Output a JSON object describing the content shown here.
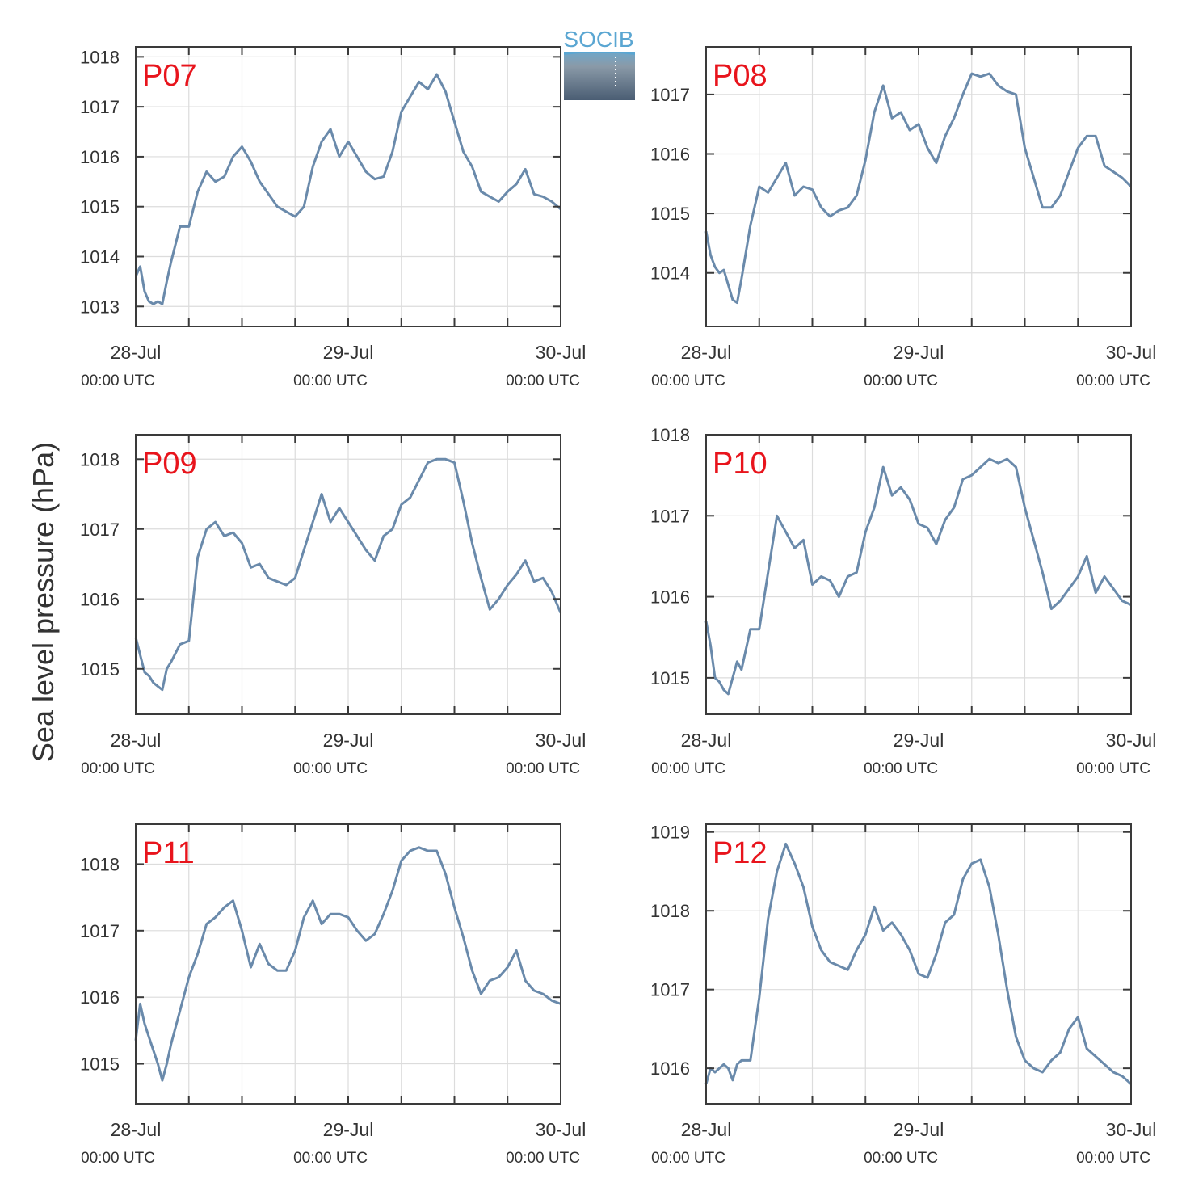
{
  "figure": {
    "ylabel": "Sea level pressure (hPa)",
    "logo_text": "SOCIB"
  },
  "colors": {
    "line": "#6a8aab",
    "panel_label": "#e8141c",
    "axis": "#3a3a3a",
    "grid": "#dcdcdc",
    "text": "#333333",
    "logo_top": "#5aa6d2",
    "logo_bottom": "#4a5d73"
  },
  "chart_data": [
    {
      "type": "line",
      "label": "P07",
      "xlim": [
        0,
        48
      ],
      "ylim": [
        1012.6,
        1018.2
      ],
      "yticks": [
        1013,
        1014,
        1015,
        1016,
        1017,
        1018
      ],
      "xticks": [
        {
          "x": 0,
          "label": "28-Jul",
          "sub": "00:00 UTC"
        },
        {
          "x": 24,
          "label": "29-Jul",
          "sub": "00:00 UTC"
        },
        {
          "x": 48,
          "label": "30-Jul",
          "sub": "00:00 UTC"
        }
      ],
      "minor_xticks": [
        6,
        12,
        18,
        30,
        36,
        42
      ],
      "x": [
        0,
        0.5,
        1,
        1.5,
        2,
        2.5,
        3,
        3.5,
        4,
        5,
        6,
        7,
        8,
        9,
        10,
        11,
        12,
        13,
        14,
        15,
        16,
        17,
        18,
        19,
        20,
        21,
        22,
        23,
        24,
        25,
        26,
        27,
        28,
        29,
        30,
        31,
        32,
        33,
        34,
        35,
        36,
        37,
        38,
        39,
        40,
        41,
        42,
        43,
        44,
        45,
        46,
        47,
        48
      ],
      "y": [
        1013.6,
        1013.8,
        1013.3,
        1013.1,
        1013.05,
        1013.1,
        1013.05,
        1013.5,
        1013.9,
        1014.6,
        1014.6,
        1015.3,
        1015.7,
        1015.5,
        1015.6,
        1016.0,
        1016.2,
        1015.9,
        1015.5,
        1015.25,
        1015.0,
        1014.9,
        1014.8,
        1015.0,
        1015.8,
        1016.3,
        1016.55,
        1016.0,
        1016.3,
        1016.0,
        1015.7,
        1015.55,
        1015.6,
        1016.1,
        1016.9,
        1017.2,
        1017.5,
        1017.35,
        1017.65,
        1017.3,
        1016.7,
        1016.1,
        1015.8,
        1015.3,
        1015.2,
        1015.1,
        1015.3,
        1015.45,
        1015.75,
        1015.25,
        1015.2,
        1015.1,
        1014.95
      ]
    },
    {
      "type": "line",
      "label": "P08",
      "xlim": [
        0,
        48
      ],
      "ylim": [
        1013.1,
        1017.8
      ],
      "yticks": [
        1014,
        1015,
        1016,
        1017
      ],
      "xticks": [
        {
          "x": 0,
          "label": "28-Jul",
          "sub": "00:00 UTC"
        },
        {
          "x": 24,
          "label": "29-Jul",
          "sub": "00:00 UTC"
        },
        {
          "x": 48,
          "label": "30-Jul",
          "sub": "00:00 UTC"
        }
      ],
      "minor_xticks": [
        6,
        12,
        18,
        30,
        36,
        42
      ],
      "x": [
        0,
        0.5,
        1,
        1.5,
        2,
        2.5,
        3,
        3.5,
        4,
        5,
        6,
        7,
        8,
        9,
        10,
        11,
        12,
        13,
        14,
        15,
        16,
        17,
        18,
        19,
        20,
        21,
        22,
        23,
        24,
        25,
        26,
        27,
        28,
        29,
        30,
        31,
        32,
        33,
        34,
        35,
        36,
        37,
        38,
        39,
        40,
        41,
        42,
        43,
        44,
        45,
        46,
        47,
        48
      ],
      "y": [
        1014.7,
        1014.3,
        1014.1,
        1014.0,
        1014.05,
        1013.8,
        1013.55,
        1013.5,
        1013.9,
        1014.8,
        1015.45,
        1015.35,
        1015.6,
        1015.85,
        1015.3,
        1015.45,
        1015.4,
        1015.1,
        1014.95,
        1015.05,
        1015.1,
        1015.3,
        1015.9,
        1016.7,
        1017.15,
        1016.6,
        1016.7,
        1016.4,
        1016.5,
        1016.1,
        1015.85,
        1016.3,
        1016.6,
        1017.0,
        1017.35,
        1017.3,
        1017.35,
        1017.15,
        1017.05,
        1017.0,
        1016.1,
        1015.6,
        1015.1,
        1015.1,
        1015.3,
        1015.7,
        1016.1,
        1016.3,
        1016.3,
        1015.8,
        1015.7,
        1015.6,
        1015.45
      ]
    },
    {
      "type": "line",
      "label": "P09",
      "xlim": [
        0,
        48
      ],
      "ylim": [
        1014.35,
        1018.35
      ],
      "yticks": [
        1015,
        1016,
        1017,
        1018
      ],
      "xticks": [
        {
          "x": 0,
          "label": "28-Jul",
          "sub": "00:00 UTC"
        },
        {
          "x": 24,
          "label": "29-Jul",
          "sub": "00:00 UTC"
        },
        {
          "x": 48,
          "label": "30-Jul",
          "sub": "00:00 UTC"
        }
      ],
      "minor_xticks": [
        6,
        12,
        18,
        30,
        36,
        42
      ],
      "x": [
        0,
        0.5,
        1,
        1.5,
        2,
        2.5,
        3,
        3.5,
        4,
        5,
        6,
        7,
        8,
        9,
        10,
        11,
        12,
        13,
        14,
        15,
        16,
        17,
        18,
        19,
        20,
        21,
        22,
        23,
        24,
        25,
        26,
        27,
        28,
        29,
        30,
        31,
        32,
        33,
        34,
        35,
        36,
        37,
        38,
        39,
        40,
        41,
        42,
        43,
        44,
        45,
        46,
        47,
        48
      ],
      "y": [
        1015.45,
        1015.2,
        1014.95,
        1014.9,
        1014.8,
        1014.75,
        1014.7,
        1015.0,
        1015.1,
        1015.35,
        1015.4,
        1016.6,
        1017.0,
        1017.1,
        1016.9,
        1016.95,
        1016.8,
        1016.45,
        1016.5,
        1016.3,
        1016.25,
        1016.2,
        1016.3,
        1016.7,
        1017.1,
        1017.5,
        1017.1,
        1017.3,
        1017.1,
        1016.9,
        1016.7,
        1016.55,
        1016.9,
        1017.0,
        1017.35,
        1017.45,
        1017.7,
        1017.95,
        1018.0,
        1018.0,
        1017.95,
        1017.4,
        1016.8,
        1016.3,
        1015.85,
        1016.0,
        1016.2,
        1016.35,
        1016.55,
        1016.25,
        1016.3,
        1016.1,
        1015.8
      ]
    },
    {
      "type": "line",
      "label": "P10",
      "xlim": [
        0,
        48
      ],
      "ylim": [
        1014.55,
        1018.0
      ],
      "yticks": [
        1015,
        1016,
        1017,
        1018
      ],
      "xticks": [
        {
          "x": 0,
          "label": "28-Jul",
          "sub": "00:00 UTC"
        },
        {
          "x": 24,
          "label": "29-Jul",
          "sub": "00:00 UTC"
        },
        {
          "x": 48,
          "label": "30-Jul",
          "sub": "00:00 UTC"
        }
      ],
      "minor_xticks": [
        6,
        12,
        18,
        30,
        36,
        42
      ],
      "x": [
        0,
        0.5,
        1,
        1.5,
        2,
        2.5,
        3,
        3.5,
        4,
        5,
        5.5,
        6,
        7,
        8,
        9,
        10,
        11,
        12,
        13,
        14,
        15,
        16,
        17,
        18,
        19,
        20,
        21,
        22,
        23,
        24,
        25,
        26,
        27,
        28,
        29,
        30,
        31,
        32,
        33,
        34,
        35,
        36,
        37,
        38,
        39,
        40,
        41,
        42,
        43,
        44,
        45,
        46,
        47,
        48
      ],
      "y": [
        1015.7,
        1015.4,
        1015.0,
        1014.95,
        1014.85,
        1014.8,
        1015.0,
        1015.2,
        1015.1,
        1015.6,
        1015.6,
        1015.6,
        1016.3,
        1017.0,
        1016.8,
        1016.6,
        1016.7,
        1016.15,
        1016.25,
        1016.2,
        1016.0,
        1016.25,
        1016.3,
        1016.8,
        1017.1,
        1017.6,
        1017.25,
        1017.35,
        1017.2,
        1016.9,
        1016.85,
        1016.65,
        1016.95,
        1017.1,
        1017.45,
        1017.5,
        1017.6,
        1017.7,
        1017.65,
        1017.7,
        1017.6,
        1017.1,
        1016.7,
        1016.3,
        1015.85,
        1015.95,
        1016.1,
        1016.25,
        1016.5,
        1016.05,
        1016.25,
        1016.1,
        1015.95,
        1015.9
      ]
    },
    {
      "type": "line",
      "label": "P11",
      "xlim": [
        0,
        48
      ],
      "ylim": [
        1014.4,
        1018.6
      ],
      "yticks": [
        1015,
        1016,
        1017,
        1018
      ],
      "xticks": [
        {
          "x": 0,
          "label": "28-Jul",
          "sub": "00:00 UTC"
        },
        {
          "x": 24,
          "label": "29-Jul",
          "sub": "00:00 UTC"
        },
        {
          "x": 48,
          "label": "30-Jul",
          "sub": "00:00 UTC"
        }
      ],
      "minor_xticks": [
        6,
        12,
        18,
        30,
        36,
        42
      ],
      "x": [
        0,
        0.5,
        1,
        1.5,
        2,
        2.5,
        3,
        3.5,
        4,
        5,
        6,
        7,
        8,
        9,
        10,
        11,
        12,
        13,
        14,
        15,
        16,
        17,
        18,
        19,
        20,
        21,
        22,
        23,
        24,
        25,
        26,
        27,
        28,
        29,
        30,
        31,
        32,
        33,
        34,
        35,
        36,
        37,
        38,
        39,
        40,
        41,
        42,
        43,
        44,
        45,
        46,
        47,
        48
      ],
      "y": [
        1015.35,
        1015.9,
        1015.6,
        1015.4,
        1015.2,
        1015.0,
        1014.75,
        1015.0,
        1015.3,
        1015.8,
        1016.3,
        1016.65,
        1017.1,
        1017.2,
        1017.35,
        1017.45,
        1017.0,
        1016.45,
        1016.8,
        1016.5,
        1016.4,
        1016.4,
        1016.7,
        1017.2,
        1017.45,
        1017.1,
        1017.25,
        1017.25,
        1017.2,
        1017.0,
        1016.85,
        1016.95,
        1017.25,
        1017.6,
        1018.05,
        1018.2,
        1018.25,
        1018.2,
        1018.2,
        1017.85,
        1017.35,
        1016.9,
        1016.4,
        1016.05,
        1016.25,
        1016.3,
        1016.45,
        1016.7,
        1016.25,
        1016.1,
        1016.05,
        1015.95,
        1015.9
      ]
    },
    {
      "type": "line",
      "label": "P12",
      "xlim": [
        0,
        48
      ],
      "ylim": [
        1015.55,
        1019.1
      ],
      "yticks": [
        1016,
        1017,
        1018,
        1019
      ],
      "xticks": [
        {
          "x": 0,
          "label": "28-Jul",
          "sub": "00:00 UTC"
        },
        {
          "x": 24,
          "label": "29-Jul",
          "sub": "00:00 UTC"
        },
        {
          "x": 48,
          "label": "30-Jul",
          "sub": "00:00 UTC"
        }
      ],
      "minor_xticks": [
        6,
        12,
        18,
        30,
        36,
        42
      ],
      "x": [
        0,
        0.5,
        1,
        1.5,
        2,
        2.5,
        3,
        3.5,
        4,
        5,
        6,
        7,
        8,
        9,
        10,
        11,
        12,
        13,
        14,
        15,
        16,
        17,
        18,
        19,
        20,
        21,
        22,
        23,
        24,
        25,
        26,
        27,
        28,
        29,
        30,
        31,
        32,
        33,
        34,
        35,
        36,
        37,
        38,
        39,
        40,
        41,
        42,
        43,
        44,
        45,
        46,
        47,
        48
      ],
      "y": [
        1015.8,
        1016.0,
        1015.95,
        1016.0,
        1016.05,
        1016.0,
        1015.85,
        1016.05,
        1016.1,
        1016.1,
        1016.9,
        1017.9,
        1018.5,
        1018.85,
        1018.6,
        1018.3,
        1017.8,
        1017.5,
        1017.35,
        1017.3,
        1017.25,
        1017.5,
        1017.7,
        1018.05,
        1017.75,
        1017.85,
        1017.7,
        1017.5,
        1017.2,
        1017.15,
        1017.45,
        1017.85,
        1017.95,
        1018.4,
        1018.6,
        1018.65,
        1018.3,
        1017.7,
        1017.0,
        1016.4,
        1016.1,
        1016.0,
        1015.95,
        1016.1,
        1016.2,
        1016.5,
        1016.65,
        1016.25,
        1016.15,
        1016.05,
        1015.95,
        1015.9,
        1015.8
      ]
    }
  ]
}
